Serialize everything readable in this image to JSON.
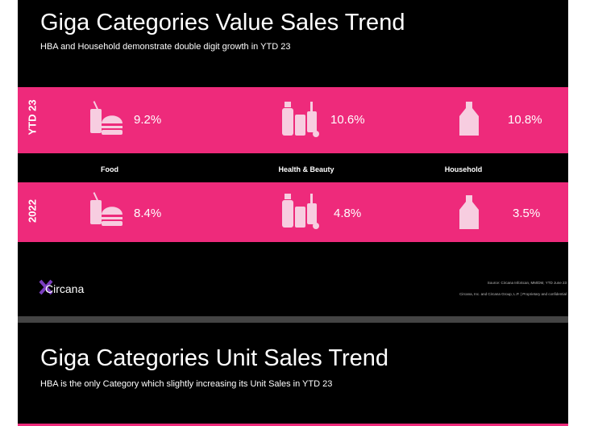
{
  "slides": [
    {
      "title": "Giga Categories Value Sales Trend",
      "subtitle": "HBA and Household demonstrate double digit growth in YTD 23",
      "rows": [
        {
          "label": "YTD 23",
          "values": [
            "9.2%",
            "10.6%",
            "10.8%"
          ]
        },
        {
          "label": "2022",
          "values": [
            "8.4%",
            "4.8%",
            "3.5%"
          ]
        }
      ],
      "categories": [
        "Food",
        "Health & Beauty",
        "Household"
      ],
      "logo": "Circana",
      "source": [
        "Source: Circana InfoScan, MM/DM, YTD June 23",
        "Circana, Inc. and Circana Group, L.P. | Proprietary and confidential"
      ]
    },
    {
      "title": "Giga Categories Unit Sales Trend",
      "subtitle": "HBA is the only Category which slightly increasing its Unit Sales in YTD 23"
    }
  ]
}
